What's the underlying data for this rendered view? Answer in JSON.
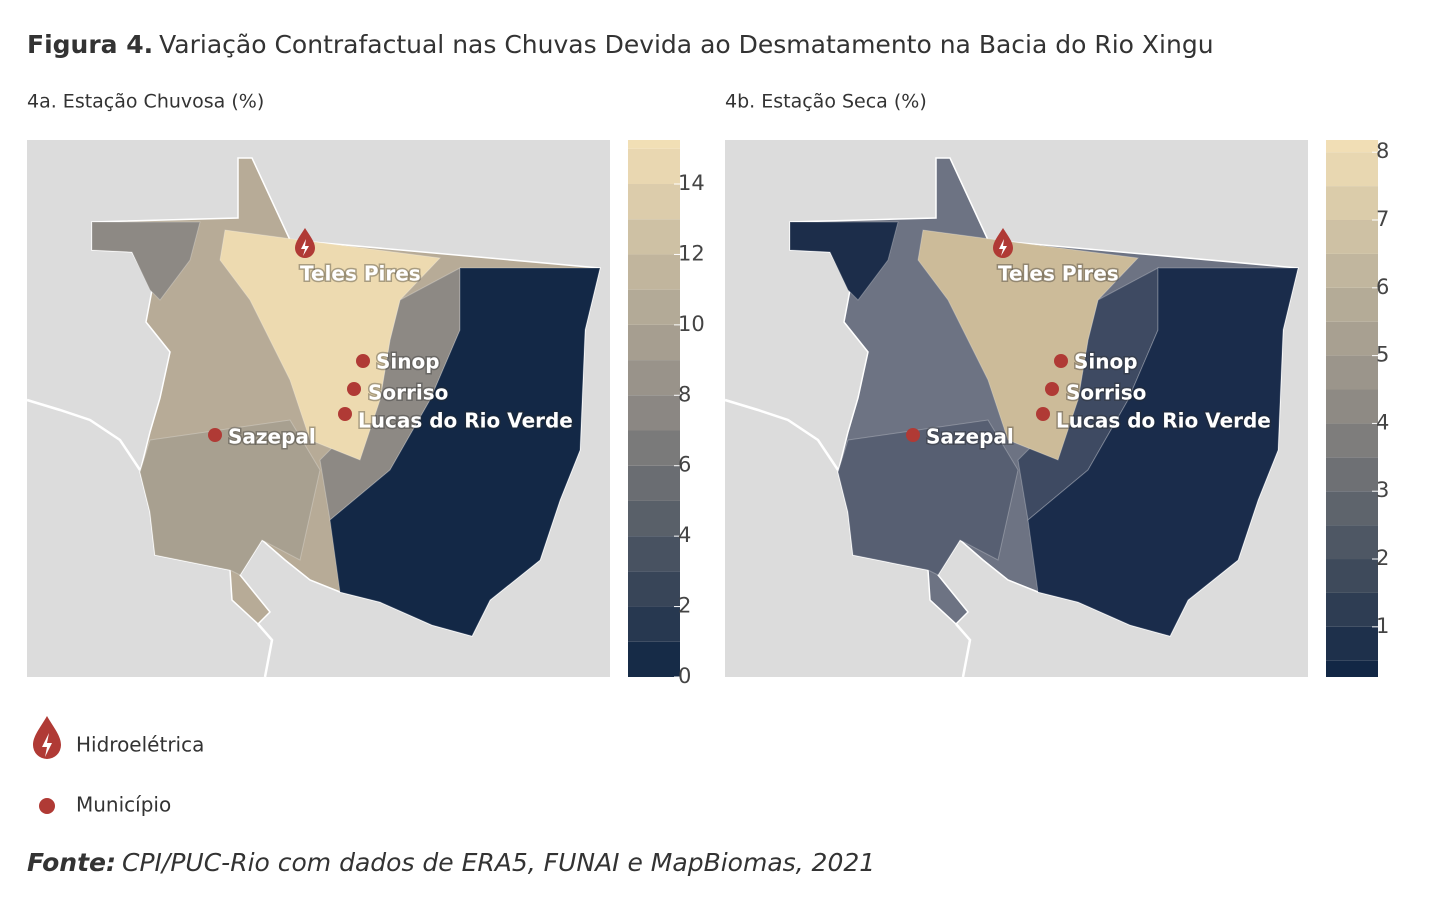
{
  "title": {
    "label": "Figura 4.",
    "text": "Variação Contrafactual nas Chuvas Devida ao Desmatamento na Bacia do Rio Xingu"
  },
  "panels": [
    {
      "subtitle": "4a. Estação Chuvosa (%)",
      "colorbar": {
        "range": [
          0,
          15.25
        ],
        "ticks": [
          0,
          2,
          4,
          6,
          8,
          10,
          12,
          14
        ],
        "band_step": 1,
        "colors": [
          "#0e2443",
          "#8d8984",
          "#f3e0b6"
        ]
      },
      "hydro": "Teles Pires",
      "municipalities": [
        "Sinop",
        "Sorriso",
        "Lucas do Rio Verde",
        "Sazepal"
      ]
    },
    {
      "subtitle": "4b. Estação Seca (%)",
      "colorbar": {
        "range": [
          0.26,
          8.18
        ],
        "ticks": [
          1,
          2,
          3,
          4,
          5,
          6,
          7,
          8
        ],
        "band_step": 0.5,
        "colors": [
          "#0e2443",
          "#8d8984",
          "#f3e0b6"
        ]
      },
      "hydro": "Teles Pires",
      "municipalities": [
        "Sinop",
        "Sorriso",
        "Lucas do Rio Verde",
        "Sazepal"
      ]
    }
  ],
  "legend": {
    "hydro": "Hidroelétrica",
    "municipality": "Município"
  },
  "source": {
    "label": "Fonte:",
    "text": "CPI/PUC-Rio com dados de ERA5, FUNAI e MapBiomas, 2021"
  }
}
